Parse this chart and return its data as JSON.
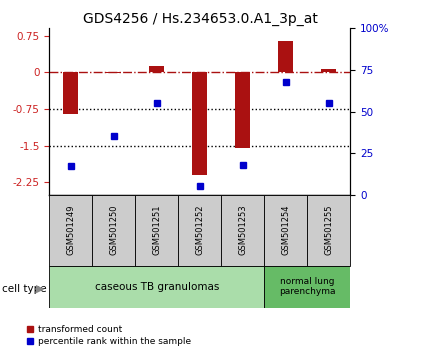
{
  "title": "GDS4256 / Hs.234653.0.A1_3p_at",
  "samples": [
    "GSM501249",
    "GSM501250",
    "GSM501251",
    "GSM501252",
    "GSM501253",
    "GSM501254",
    "GSM501255"
  ],
  "red_values": [
    -0.85,
    -0.02,
    0.13,
    -2.1,
    -1.55,
    0.65,
    0.07
  ],
  "blue_values": [
    17,
    35,
    55,
    5,
    18,
    68,
    55
  ],
  "ylim_left": [
    -2.5,
    0.9
  ],
  "ylim_right": [
    0,
    100
  ],
  "yticks_left": [
    0.75,
    0,
    -0.75,
    -1.5,
    -2.25
  ],
  "yticks_right": [
    100,
    75,
    50,
    25,
    0
  ],
  "ytick_labels_right": [
    "100%",
    "75",
    "50",
    "25",
    "0"
  ],
  "hlines_dotted": [
    -0.75,
    -1.5
  ],
  "hline_dashdot": 0,
  "bar_color": "#AA1111",
  "dot_color": "#0000CC",
  "group1_label": "caseous TB granulomas",
  "group2_label": "normal lung\nparenchyma",
  "group1_color": "#AADDAA",
  "group2_color": "#66BB66",
  "cell_type_label": "cell type",
  "legend_red": "transformed count",
  "legend_blue": "percentile rank within the sample",
  "left_ytick_color": "#CC2222",
  "right_ytick_color": "#0000CC",
  "title_fontsize": 10,
  "bar_width": 0.35
}
